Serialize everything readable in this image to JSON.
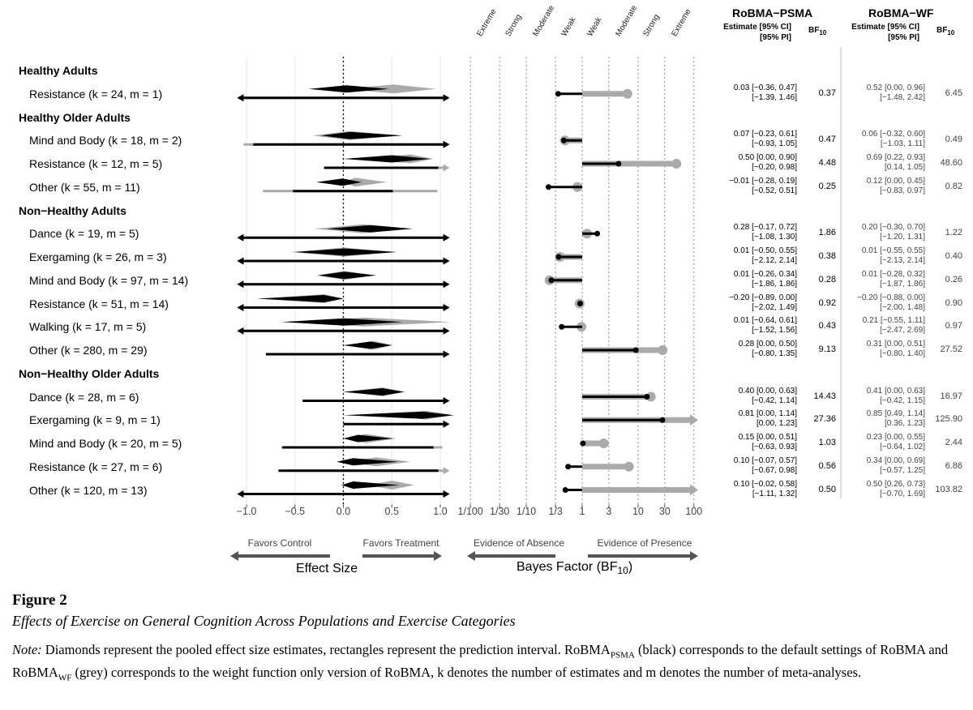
{
  "chart_data": {
    "type": "forest",
    "colors": {
      "psma": "#000000",
      "wf": "#aaaaaa",
      "grid": "#e6e6e6",
      "ref": "#000000"
    },
    "effect_axis": {
      "name": "Effect Size",
      "ticks": [
        "−1.0",
        "−0.5",
        "0.0",
        "0.5",
        "1.0"
      ],
      "tick_values": [
        -1.0,
        -0.5,
        0.0,
        0.5,
        1.0
      ],
      "xlim": [
        -1.1,
        1.1
      ],
      "left_label": "Favors Control",
      "right_label": "Favors Treatment"
    },
    "bf_axis": {
      "name_main": "Bayes Factor (BF",
      "name_sub": "10",
      "name_end": ")",
      "ticks": [
        "1/100",
        "1/30",
        "1/10",
        "1/3",
        "1",
        "3",
        "10",
        "30",
        "100"
      ],
      "tick_values": [
        0.01,
        0.0333,
        0.1,
        0.3333,
        1,
        3,
        10,
        30,
        100
      ],
      "categories": [
        "Extreme",
        "Strong",
        "Moderate",
        "Weak",
        "Weak",
        "Moderate",
        "Strong",
        "Extreme"
      ],
      "left_label": "Evidence of Absence",
      "right_label": "Evidence of Presence"
    },
    "headers": {
      "psma_title": "RoBMA−PSMA",
      "wf_title": "RoBMA−WF",
      "est_line1": "Estimate [95% CI]",
      "est_line2": "[95% PI]",
      "bf_main": "BF",
      "bf_sub": "10"
    },
    "rows": [
      {
        "type": "group",
        "label": "Healthy Adults"
      },
      {
        "type": "row",
        "label": "Resistance (k = 24, m = 1)",
        "psma": {
          "est": 0.03,
          "ci": [
            -0.36,
            0.47
          ],
          "pi": [
            -1.39,
            1.46
          ],
          "bf": 0.37,
          "ci_text": "0.03 [−0.36, 0.47]",
          "pi_text": "[−1.39, 1.46]",
          "bf_text": "0.37"
        },
        "wf": {
          "est": 0.52,
          "ci": [
            0.0,
            0.96
          ],
          "pi": [
            -1.48,
            2.42
          ],
          "bf": 6.45,
          "ci_text": "0.52 [0.00, 0.96]",
          "pi_text": "[−1.48, 2.42]",
          "bf_text": "6.45"
        }
      },
      {
        "type": "group",
        "label": "Healthy Older Adults"
      },
      {
        "type": "row",
        "label": "Mind and Body (k = 18, m = 2)",
        "psma": {
          "est": 0.07,
          "ci": [
            -0.23,
            0.61
          ],
          "pi": [
            -0.93,
            1.05
          ],
          "bf": 0.47,
          "ci_text": "0.07 [−0.23, 0.61]",
          "pi_text": "[−0.93, 1.05]",
          "bf_text": "0.47"
        },
        "wf": {
          "est": 0.06,
          "ci": [
            -0.32,
            0.6
          ],
          "pi": [
            -1.03,
            1.11
          ],
          "bf": 0.49,
          "ci_text": "0.06 [−0.32, 0.60]",
          "pi_text": "[−1.03, 1.11]",
          "bf_text": "0.49"
        }
      },
      {
        "type": "row",
        "label": "Resistance (k = 12, m = 5)",
        "psma": {
          "est": 0.5,
          "ci": [
            0.0,
            0.9
          ],
          "pi": [
            -0.2,
            0.98
          ],
          "bf": 4.48,
          "ci_text": "0.50 [0.00, 0.90]",
          "pi_text": "[−0.20, 0.98]",
          "bf_text": "4.48"
        },
        "wf": {
          "est": 0.69,
          "ci": [
            0.22,
            0.93
          ],
          "pi": [
            0.14,
            1.05
          ],
          "bf": 48.6,
          "ci_text": "0.69 [0.22, 0.93]",
          "pi_text": "[0.14, 1.05]",
          "bf_text": "48.60"
        }
      },
      {
        "type": "row",
        "label": "Other (k = 55, m = 11)",
        "psma": {
          "est": -0.01,
          "ci": [
            -0.28,
            0.19
          ],
          "pi": [
            -0.52,
            0.51
          ],
          "bf": 0.25,
          "ci_text": "−0.01 [−0.28, 0.19]",
          "pi_text": "[−0.52, 0.51]",
          "bf_text": "0.25"
        },
        "wf": {
          "est": 0.12,
          "ci": [
            0.0,
            0.45
          ],
          "pi": [
            -0.83,
            0.97
          ],
          "bf": 0.82,
          "ci_text": "0.12 [0.00, 0.45]",
          "pi_text": "[−0.83, 0.97]",
          "bf_text": "0.82"
        }
      },
      {
        "type": "group",
        "label": "Non−Healthy Adults"
      },
      {
        "type": "row",
        "label": "Dance (k = 19, m = 5)",
        "psma": {
          "est": 0.28,
          "ci": [
            -0.17,
            0.72
          ],
          "pi": [
            -1.08,
            1.3
          ],
          "bf": 1.86,
          "ci_text": "0.28 [−0.17, 0.72]",
          "pi_text": "[−1.08, 1.30]",
          "bf_text": "1.86"
        },
        "wf": {
          "est": 0.2,
          "ci": [
            -0.3,
            0.7
          ],
          "pi": [
            -1.2,
            1.31
          ],
          "bf": 1.22,
          "ci_text": "0.20 [−0.30, 0.70]",
          "pi_text": "[−1.20, 1.31]",
          "bf_text": "1.22"
        }
      },
      {
        "type": "row",
        "label": "Exergaming (k = 26, m = 3)",
        "psma": {
          "est": 0.01,
          "ci": [
            -0.5,
            0.55
          ],
          "pi": [
            -2.12,
            2.14
          ],
          "bf": 0.38,
          "ci_text": "0.01 [−0.50, 0.55]",
          "pi_text": "[−2.12, 2.14]",
          "bf_text": "0.38"
        },
        "wf": {
          "est": 0.01,
          "ci": [
            -0.55,
            0.55
          ],
          "pi": [
            -2.13,
            2.14
          ],
          "bf": 0.4,
          "ci_text": "0.01 [−0.55, 0.55]",
          "pi_text": "[−2.13, 2.14]",
          "bf_text": "0.40"
        }
      },
      {
        "type": "row",
        "label": "Mind and Body (k = 97, m = 14)",
        "psma": {
          "est": 0.01,
          "ci": [
            -0.26,
            0.34
          ],
          "pi": [
            -1.86,
            1.86
          ],
          "bf": 0.28,
          "ci_text": "0.01 [−0.26, 0.34]",
          "pi_text": "[−1.86, 1.86]",
          "bf_text": "0.28"
        },
        "wf": {
          "est": 0.01,
          "ci": [
            -0.28,
            0.32
          ],
          "pi": [
            -1.87,
            1.86
          ],
          "bf": 0.26,
          "ci_text": "0.01 [−0.28, 0.32]",
          "pi_text": "[−1.87, 1.86]",
          "bf_text": "0.26"
        }
      },
      {
        "type": "row",
        "label": "Resistance (k = 51, m = 14)",
        "psma": {
          "est": -0.2,
          "ci": [
            -0.89,
            0.0
          ],
          "pi": [
            -2.02,
            1.49
          ],
          "bf": 0.92,
          "ci_text": "−0.20 [−0.89, 0.00]",
          "pi_text": "[−2.02, 1.49]",
          "bf_text": "0.92"
        },
        "wf": {
          "est": -0.2,
          "ci": [
            -0.88,
            0.0
          ],
          "pi": [
            -2.0,
            1.48
          ],
          "bf": 0.9,
          "ci_text": "−0.20 [−0.88, 0.00]",
          "pi_text": "[−2.00, 1.48]",
          "bf_text": "0.90"
        }
      },
      {
        "type": "row",
        "label": "Walking (k = 17, m = 5)",
        "psma": {
          "est": 0.01,
          "ci": [
            -0.64,
            0.61
          ],
          "pi": [
            -1.52,
            1.56
          ],
          "bf": 0.43,
          "ci_text": "0.01 [−0.64, 0.61]",
          "pi_text": "[−1.52, 1.56]",
          "bf_text": "0.43"
        },
        "wf": {
          "est": 0.21,
          "ci": [
            -0.55,
            1.11
          ],
          "pi": [
            -2.47,
            2.69
          ],
          "bf": 0.97,
          "ci_text": "0.21 [−0.55, 1.11]",
          "pi_text": "[−2.47, 2.69]",
          "bf_text": "0.97"
        }
      },
      {
        "type": "row",
        "label": "Other (k = 280, m = 29)",
        "psma": {
          "est": 0.28,
          "ci": [
            0.0,
            0.5
          ],
          "pi": [
            -0.8,
            1.35
          ],
          "bf": 9.13,
          "ci_text": "0.28 [0.00, 0.50]",
          "pi_text": "[−0.80, 1.35]",
          "bf_text": "9.13"
        },
        "wf": {
          "est": 0.31,
          "ci": [
            0.0,
            0.51
          ],
          "pi": [
            -0.8,
            1.4
          ],
          "bf": 27.52,
          "ci_text": "0.31 [0.00, 0.51]",
          "pi_text": "[−0.80, 1.40]",
          "bf_text": "27.52"
        }
      },
      {
        "type": "group",
        "label": "Non−Healthy Older Adults"
      },
      {
        "type": "row",
        "label": "Dance (k = 28, m = 6)",
        "psma": {
          "est": 0.4,
          "ci": [
            0.0,
            0.63
          ],
          "pi": [
            -0.42,
            1.14
          ],
          "bf": 14.43,
          "ci_text": "0.40 [0.00, 0.63]",
          "pi_text": "[−0.42, 1.14]",
          "bf_text": "14.43"
        },
        "wf": {
          "est": 0.41,
          "ci": [
            0.0,
            0.63
          ],
          "pi": [
            -0.42,
            1.15
          ],
          "bf": 16.97,
          "ci_text": "0.41 [0.00, 0.63]",
          "pi_text": "[−0.42, 1.15]",
          "bf_text": "16.97"
        }
      },
      {
        "type": "row",
        "label": "Exergaming (k = 9, m = 1)",
        "psma": {
          "est": 0.81,
          "ci": [
            0.0,
            1.14
          ],
          "pi": [
            0.0,
            1.23
          ],
          "bf": 27.36,
          "ci_text": "0.81 [0.00, 1.14]",
          "pi_text": "[0.00, 1.23]",
          "bf_text": "27.36"
        },
        "wf": {
          "est": 0.85,
          "ci": [
            0.49,
            1.14
          ],
          "pi": [
            0.36,
            1.23
          ],
          "bf": 125.9,
          "ci_text": "0.85 [0.49, 1.14]",
          "pi_text": "[0.36, 1.23]",
          "bf_text": "125.90"
        }
      },
      {
        "type": "row",
        "label": "Mind and Body (k = 20, m = 5)",
        "psma": {
          "est": 0.15,
          "ci": [
            0.0,
            0.51
          ],
          "pi": [
            -0.63,
            0.93
          ],
          "bf": 1.03,
          "ci_text": "0.15 [0.00, 0.51]",
          "pi_text": "[−0.63, 0.93]",
          "bf_text": "1.03"
        },
        "wf": {
          "est": 0.23,
          "ci": [
            0.0,
            0.55
          ],
          "pi": [
            -0.64,
            1.02
          ],
          "bf": 2.44,
          "ci_text": "0.23 [0.00, 0.55]",
          "pi_text": "[−0.64, 1.02]",
          "bf_text": "2.44"
        }
      },
      {
        "type": "row",
        "label": "Resistance (k = 27, m = 6)",
        "psma": {
          "est": 0.1,
          "ci": [
            -0.07,
            0.57
          ],
          "pi": [
            -0.67,
            0.98
          ],
          "bf": 0.56,
          "ci_text": "0.10 [−0.07, 0.57]",
          "pi_text": "[−0.67, 0.98]",
          "bf_text": "0.56"
        },
        "wf": {
          "est": 0.34,
          "ci": [
            0.0,
            0.69
          ],
          "pi": [
            -0.57,
            1.25
          ],
          "bf": 6.86,
          "ci_text": "0.34 [0.00, 0.69]",
          "pi_text": "[−0.57, 1.25]",
          "bf_text": "6.86"
        }
      },
      {
        "type": "row",
        "label": "Other (k = 120, m = 13)",
        "psma": {
          "est": 0.1,
          "ci": [
            -0.02,
            0.58
          ],
          "pi": [
            -1.11,
            1.32
          ],
          "bf": 0.5,
          "ci_text": "0.10 [−0.02, 0.58]",
          "pi_text": "[−1.11, 1.32]",
          "bf_text": "0.50"
        },
        "wf": {
          "est": 0.5,
          "ci": [
            0.26,
            0.73
          ],
          "pi": [
            -0.7,
            1.69
          ],
          "bf": 103.82,
          "ci_text": "0.50 [0.26, 0.73]",
          "pi_text": "[−0.70, 1.69]",
          "bf_text": "103.82"
        }
      }
    ]
  },
  "caption": {
    "label": "Figure 2",
    "title": "Effects of Exercise on General Cognition Across Populations and Exercise Categories",
    "note_label": "Note:",
    "note_part1": " Diamonds represent the pooled effect size estimates, rectangles represent the prediction interval. RoBMA",
    "note_sub1": "PSMA",
    "note_part2": " (black) corresponds to the default settings of RoBMA and RoBMA",
    "note_sub2": "WF",
    "note_part3": " (grey) corresponds to the weight function only version of RoBMA, k denotes the number of estimates and m denotes the number of meta-analyses."
  }
}
